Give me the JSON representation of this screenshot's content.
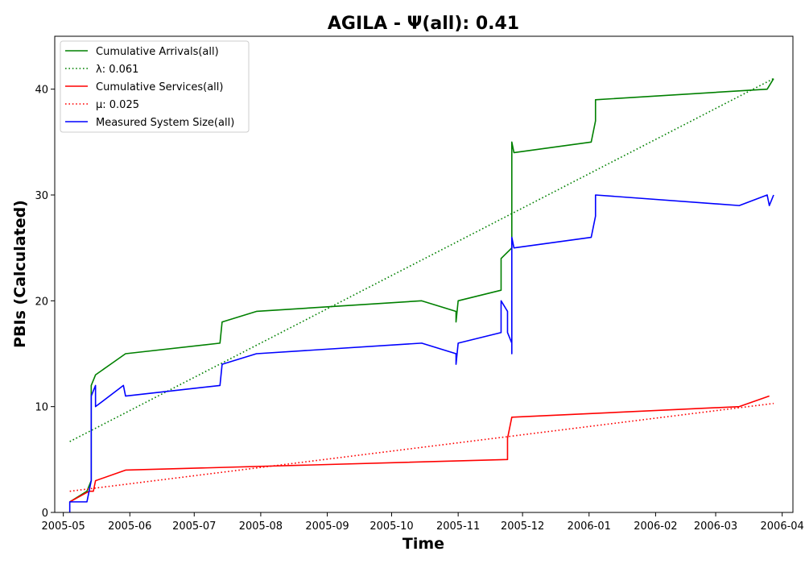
{
  "chart_data": {
    "type": "line",
    "title": "AGILA -  Ψ(all): 0.41",
    "xlabel": "Time",
    "ylabel": "PBIs (Calculated)",
    "xlim": [
      "2005-04-27",
      "2006-04-06"
    ],
    "ylim": [
      0,
      45
    ],
    "x_ticks": [
      {
        "date": "2005-05-01",
        "label": "2005-05"
      },
      {
        "date": "2005-06-01",
        "label": "2005-06"
      },
      {
        "date": "2005-07-01",
        "label": "2005-07"
      },
      {
        "date": "2005-08-01",
        "label": "2005-08"
      },
      {
        "date": "2005-09-01",
        "label": "2005-09"
      },
      {
        "date": "2005-10-01",
        "label": "2005-10"
      },
      {
        "date": "2005-11-01",
        "label": "2005-11"
      },
      {
        "date": "2005-12-01",
        "label": "2005-12"
      },
      {
        "date": "2006-01-01",
        "label": "2006-01"
      },
      {
        "date": "2006-02-01",
        "label": "2006-02"
      },
      {
        "date": "2006-03-01",
        "label": "2006-03"
      },
      {
        "date": "2006-04-01",
        "label": "2006-04"
      }
    ],
    "y_ticks": [
      0,
      10,
      20,
      30,
      40
    ],
    "grid": false,
    "legend_position": "top-left",
    "series": [
      {
        "name": "Cumulative Arrivals(all)",
        "color": "#008000",
        "style": "solid",
        "points": [
          [
            "2005-05-04",
            1
          ],
          [
            "2005-05-12",
            2
          ],
          [
            "2005-05-14",
            3
          ],
          [
            "2005-05-14",
            12
          ],
          [
            "2005-05-16",
            13
          ],
          [
            "2005-05-23",
            14
          ],
          [
            "2005-05-30",
            15
          ],
          [
            "2005-07-13",
            16
          ],
          [
            "2005-07-14",
            18
          ],
          [
            "2005-07-30",
            19
          ],
          [
            "2005-10-15",
            20
          ],
          [
            "2005-10-31",
            19
          ],
          [
            "2005-10-31",
            18
          ],
          [
            "2005-11-01",
            20
          ],
          [
            "2005-11-21",
            21
          ],
          [
            "2005-11-21",
            24
          ],
          [
            "2005-11-26",
            25
          ],
          [
            "2005-11-26",
            35
          ],
          [
            "2005-11-27",
            34
          ],
          [
            "2006-01-02",
            35
          ],
          [
            "2006-01-04",
            37
          ],
          [
            "2006-01-04",
            39
          ],
          [
            "2006-03-25",
            40
          ],
          [
            "2006-03-28",
            41
          ]
        ]
      },
      {
        "name": "λ: 0.061",
        "color": "#008000",
        "style": "dotted",
        "points": [
          [
            "2005-05-04",
            6.7
          ],
          [
            "2006-03-28",
            41
          ]
        ]
      },
      {
        "name": "Cumulative Services(all)",
        "color": "#ff0000",
        "style": "solid",
        "points": [
          [
            "2005-05-04",
            1
          ],
          [
            "2005-05-13",
            2
          ],
          [
            "2005-05-15",
            2
          ],
          [
            "2005-05-16",
            3
          ],
          [
            "2005-05-30",
            4
          ],
          [
            "2005-11-24",
            5
          ],
          [
            "2005-11-24",
            7
          ],
          [
            "2005-11-25",
            8
          ],
          [
            "2005-11-26",
            9
          ],
          [
            "2006-03-12",
            10
          ],
          [
            "2006-03-26",
            11
          ]
        ]
      },
      {
        "name": "μ: 0.025",
        "color": "#ff0000",
        "style": "dotted",
        "points": [
          [
            "2005-05-04",
            2.0
          ],
          [
            "2006-03-28",
            10.3
          ]
        ]
      },
      {
        "name": "Measured System Size(all)",
        "color": "#0000ff",
        "style": "solid",
        "points": [
          [
            "2005-05-04",
            0
          ],
          [
            "2005-05-04",
            1
          ],
          [
            "2005-05-12",
            1
          ],
          [
            "2005-05-14",
            3
          ],
          [
            "2005-05-14",
            11
          ],
          [
            "2005-05-16",
            12
          ],
          [
            "2005-05-16",
            10
          ],
          [
            "2005-05-29",
            12
          ],
          [
            "2005-05-30",
            11
          ],
          [
            "2005-07-13",
            12
          ],
          [
            "2005-07-14",
            14
          ],
          [
            "2005-07-30",
            15
          ],
          [
            "2005-10-15",
            16
          ],
          [
            "2005-10-31",
            15
          ],
          [
            "2005-10-31",
            14
          ],
          [
            "2005-11-01",
            16
          ],
          [
            "2005-11-21",
            17
          ],
          [
            "2005-11-21",
            20
          ],
          [
            "2005-11-24",
            19
          ],
          [
            "2005-11-24",
            17
          ],
          [
            "2005-11-26",
            16
          ],
          [
            "2005-11-26",
            15
          ],
          [
            "2005-11-26",
            26
          ],
          [
            "2005-11-27",
            25
          ],
          [
            "2006-01-02",
            26
          ],
          [
            "2006-01-04",
            28
          ],
          [
            "2006-01-04",
            30
          ],
          [
            "2006-03-12",
            29
          ],
          [
            "2006-03-25",
            30
          ],
          [
            "2006-03-26",
            29
          ],
          [
            "2006-03-28",
            30
          ]
        ]
      }
    ]
  }
}
